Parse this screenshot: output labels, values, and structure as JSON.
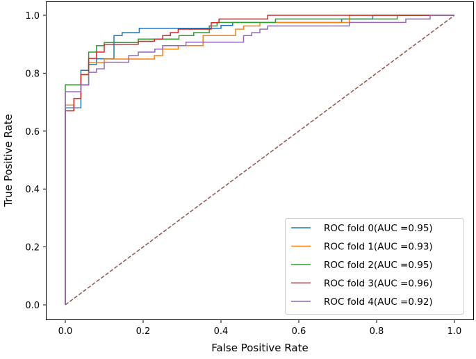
{
  "chart_data": {
    "type": "line",
    "title": "",
    "xlabel": "False Positive Rate",
    "ylabel": "True Positive Rate",
    "xlim": [
      -0.05,
      1.05
    ],
    "ylim": [
      -0.05,
      1.05
    ],
    "xticks": [
      "0.0",
      "0.2",
      "0.4",
      "0.6",
      "0.8",
      "1.0"
    ],
    "yticks": [
      "0.0",
      "0.2",
      "0.4",
      "0.6",
      "0.8",
      "1.0"
    ],
    "grid": false,
    "legend_position": "lower-right",
    "series": [
      {
        "name": "ROC fold 0(AUC =0.95)",
        "color": "#1f77b4",
        "x": [
          0,
          0,
          0.04,
          0.04,
          0.06,
          0.06,
          0.08,
          0.08,
          0.125,
          0.125,
          0.146,
          0.146,
          0.19,
          0.19,
          0.4,
          0.4,
          0.43,
          0.43,
          0.71,
          0.71,
          0.79,
          0.79,
          1
        ],
        "y": [
          0,
          0.68,
          0.68,
          0.81,
          0.81,
          0.83,
          0.83,
          0.85,
          0.85,
          0.93,
          0.93,
          0.94,
          0.94,
          0.955,
          0.955,
          0.965,
          0.965,
          0.975,
          0.975,
          0.987,
          0.987,
          1,
          1
        ]
      },
      {
        "name": "ROC fold 1(AUC =0.93)",
        "color": "#ff7f0e",
        "x": [
          0,
          0,
          0.022,
          0.022,
          0.04,
          0.04,
          0.06,
          0.06,
          0.1,
          0.1,
          0.229,
          0.229,
          0.25,
          0.25,
          0.29,
          0.29,
          0.354,
          0.354,
          0.4375,
          0.4375,
          0.458,
          0.458,
          0.5,
          0.5,
          0.73,
          0.73,
          1
        ],
        "y": [
          0,
          0.69,
          0.69,
          0.713,
          0.713,
          0.795,
          0.795,
          0.837,
          0.837,
          0.849,
          0.849,
          0.861,
          0.861,
          0.883,
          0.883,
          0.895,
          0.895,
          0.93,
          0.93,
          0.952,
          0.952,
          0.963,
          0.963,
          0.975,
          0.975,
          1,
          1
        ]
      },
      {
        "name": "ROC fold 2(AUC =0.95)",
        "color": "#2ca02c",
        "x": [
          0,
          0,
          0.04,
          0.04,
          0.06,
          0.06,
          0.08,
          0.08,
          0.1,
          0.1,
          0.1875,
          0.1875,
          0.292,
          0.292,
          0.33,
          0.33,
          0.37,
          0.37,
          0.39,
          0.39,
          0.54,
          0.54,
          0.853,
          0.853,
          1
        ],
        "y": [
          0,
          0.76,
          0.76,
          0.76,
          0.76,
          0.873,
          0.873,
          0.895,
          0.895,
          0.906,
          0.906,
          0.918,
          0.918,
          0.93,
          0.93,
          0.94,
          0.94,
          0.963,
          0.963,
          0.975,
          0.975,
          0.987,
          0.987,
          1,
          1
        ]
      },
      {
        "name": "ROC fold 3(AUC =0.96)",
        "color": "#d62728",
        "x": [
          0,
          0,
          0.022,
          0.022,
          0.04,
          0.04,
          0.06,
          0.06,
          0.08,
          0.08,
          0.1,
          0.1,
          0.1875,
          0.1875,
          0.229,
          0.229,
          0.25,
          0.25,
          0.27,
          0.27,
          0.29,
          0.29,
          0.375,
          0.375,
          0.395,
          0.395,
          0.52,
          0.52,
          1
        ],
        "y": [
          0,
          0.67,
          0.67,
          0.713,
          0.713,
          0.795,
          0.795,
          0.851,
          0.851,
          0.873,
          0.873,
          0.9,
          0.9,
          0.91,
          0.91,
          0.918,
          0.918,
          0.93,
          0.93,
          0.94,
          0.94,
          0.952,
          0.952,
          0.974,
          0.974,
          0.987,
          0.987,
          1,
          1
        ]
      },
      {
        "name": "ROC fold 4(AUC =0.92)",
        "color": "#9467bd",
        "x": [
          0,
          0,
          0.04,
          0.04,
          0.06,
          0.06,
          0.08,
          0.08,
          0.1,
          0.1,
          0.163,
          0.163,
          0.1875,
          0.1875,
          0.23,
          0.23,
          0.25,
          0.25,
          0.31,
          0.31,
          0.458,
          0.458,
          0.479,
          0.479,
          0.5,
          0.5,
          0.52,
          0.52,
          0.73,
          0.73,
          0.875,
          0.875,
          0.9375,
          0.9375,
          1
        ],
        "y": [
          0,
          0.736,
          0.736,
          0.759,
          0.759,
          0.803,
          0.803,
          0.815,
          0.815,
          0.838,
          0.838,
          0.861,
          0.861,
          0.873,
          0.873,
          0.883,
          0.883,
          0.895,
          0.895,
          0.907,
          0.907,
          0.93,
          0.93,
          0.94,
          0.94,
          0.952,
          0.952,
          0.963,
          0.963,
          0.975,
          0.975,
          0.987,
          0.987,
          1,
          1
        ]
      }
    ],
    "diagonal": {
      "x": [
        0,
        1
      ],
      "y": [
        0,
        1
      ],
      "color": "#8c564b",
      "style": "dashed"
    }
  }
}
